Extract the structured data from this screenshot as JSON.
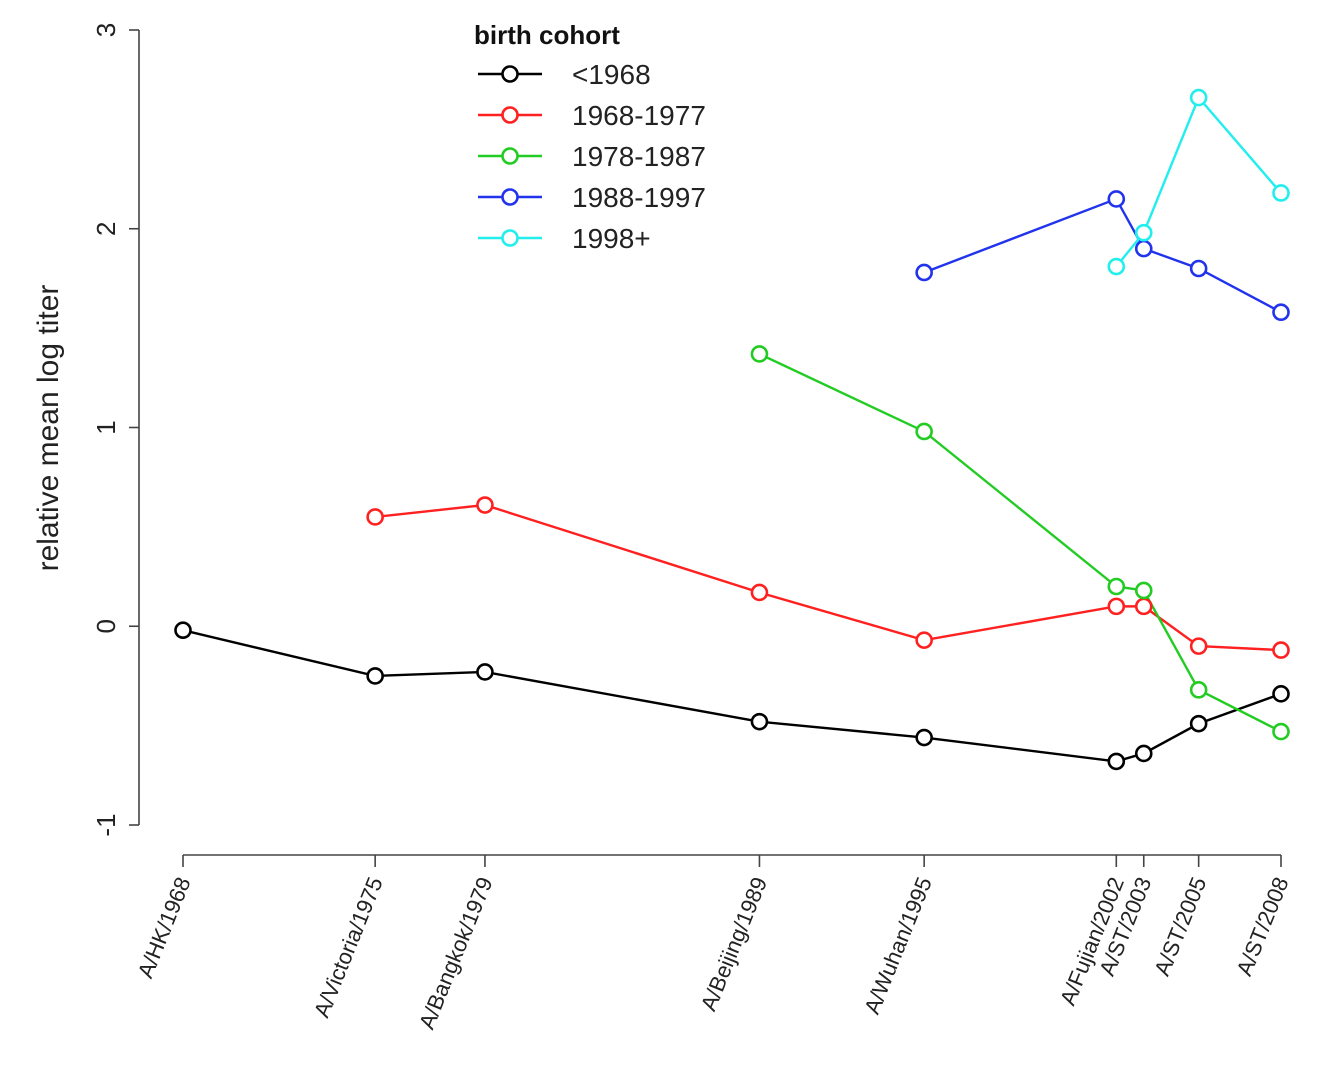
{
  "chart_data": {
    "type": "line",
    "title": "",
    "xlabel": "",
    "ylabel": "relative mean log titer",
    "ylim": [
      -1,
      3
    ],
    "yticks": [
      "-1",
      "0",
      "1",
      "2",
      "3"
    ],
    "yticks_values": [
      -1,
      0,
      1,
      2,
      3
    ],
    "x_year_range": [
      1968,
      2008
    ],
    "categories": [
      "A/HK/1968",
      "A/Victoria/1975",
      "A/Bangkok/1979",
      "A/Beijing/1989",
      "A/Wuhan/1995",
      "A/Fujian/2002",
      "A/ST/2003",
      "A/ST/2005",
      "A/ST/2008"
    ],
    "category_years": [
      1968,
      1975,
      1979,
      1989,
      1995,
      2002,
      2003,
      2005,
      2008
    ],
    "legend": {
      "title": "birth cohort",
      "position": "top-center"
    },
    "grid": false,
    "series": [
      {
        "name": "<1968",
        "color": "#000000",
        "values": [
          -0.02,
          -0.25,
          -0.23,
          -0.48,
          -0.56,
          -0.68,
          -0.64,
          -0.49,
          -0.34
        ]
      },
      {
        "name": "1968-1977",
        "color": "#ff2020",
        "values": [
          null,
          0.55,
          0.61,
          0.17,
          -0.07,
          0.1,
          0.1,
          -0.1,
          -0.12
        ]
      },
      {
        "name": "1978-1987",
        "color": "#22cc22",
        "values": [
          null,
          null,
          null,
          1.37,
          0.98,
          0.2,
          0.18,
          -0.32,
          -0.53
        ]
      },
      {
        "name": "1988-1997",
        "color": "#2233ee",
        "values": [
          null,
          null,
          null,
          null,
          1.78,
          2.15,
          1.9,
          1.8,
          1.58
        ]
      },
      {
        "name": "1998+",
        "color": "#22eeee",
        "values": [
          null,
          null,
          null,
          null,
          null,
          1.81,
          1.98,
          2.66,
          2.18
        ]
      }
    ]
  }
}
